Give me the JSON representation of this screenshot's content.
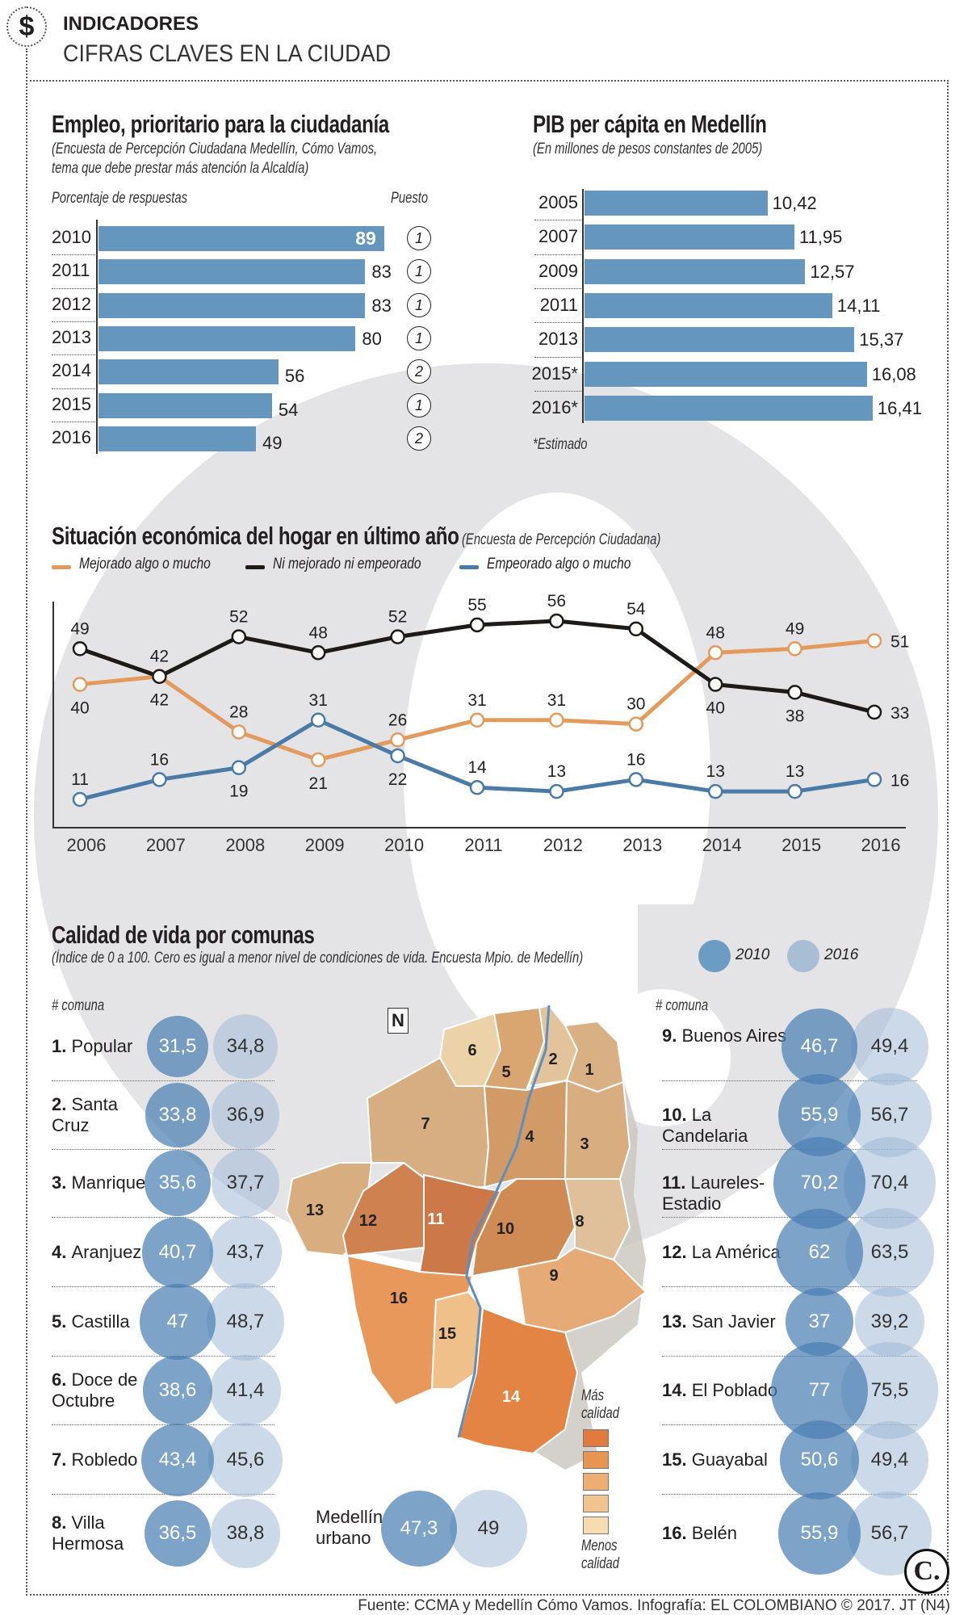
{
  "header": {
    "icon": "dollar-icon",
    "kicker": "INDICADORES",
    "title": "CIFRAS CLAVES EN LA CIUDAD"
  },
  "chart_data": [
    {
      "type": "bar",
      "id": "empleo",
      "title": "Empleo, prioritario para la ciudadanía",
      "subtitle_line1": "(Encuesta de Percepción Ciudadana Medellín, Cómo Vamos,",
      "subtitle_line2": "tema que debe prestar más atención la Alcaldía)",
      "xlabel": "Porcentaje de respuestas",
      "rank_label": "Puesto",
      "categories": [
        "2010",
        "2011",
        "2012",
        "2013",
        "2014",
        "2015",
        "2016"
      ],
      "values": [
        89,
        83,
        83,
        80,
        56,
        54,
        49
      ],
      "rank": [
        1,
        1,
        1,
        1,
        2,
        1,
        2
      ],
      "orientation": "horizontal",
      "color": "#6496be"
    },
    {
      "type": "bar",
      "id": "pib",
      "title": "PIB per cápita en Medellín",
      "subtitle": "(En millones de pesos constantes de 2005)",
      "categories": [
        "2005",
        "2007",
        "2009",
        "2011",
        "2013",
        "2015*",
        "2016*"
      ],
      "values": [
        10.42,
        11.95,
        12.57,
        14.11,
        15.37,
        16.08,
        16.41
      ],
      "value_labels": [
        "10,42",
        "11,95",
        "12,57",
        "14,11",
        "15,37",
        "16,08",
        "16,41"
      ],
      "note": "*Estimado",
      "orientation": "horizontal",
      "color": "#6496be"
    },
    {
      "type": "line",
      "id": "hogar",
      "title": "Situación económica del hogar en último año",
      "subtitle": "(Encuesta de Percepción Ciudadana)",
      "x": [
        "2006",
        "2007",
        "2008",
        "2009",
        "2010",
        "2011",
        "2012",
        "2013",
        "2014",
        "2015",
        "2016"
      ],
      "series": [
        {
          "name": "Mejorado algo o mucho",
          "color": "#e39a5d",
          "values": [
            40,
            42,
            28,
            21,
            26,
            31,
            31,
            30,
            48,
            49,
            51
          ]
        },
        {
          "name": "Ni mejorado ni empeorado",
          "color": "#1d1a17",
          "values": [
            49,
            42,
            52,
            48,
            52,
            55,
            56,
            54,
            40,
            38,
            33
          ]
        },
        {
          "name": "Empeorado algo o mucho",
          "color": "#4a7ba6",
          "values": [
            11,
            16,
            19,
            31,
            22,
            14,
            13,
            16,
            13,
            13,
            16
          ]
        }
      ],
      "legend": "top-left",
      "grid": false
    },
    {
      "type": "bubble",
      "id": "calidad",
      "title": "Calidad de vida por comunas",
      "subtitle": "(Índice de 0 a 100. Cero es igual a menor nivel de condiciones de vida. Encuesta Mpio. de Medellín)",
      "legend": [
        {
          "label": "2010",
          "color": "#6c9bc4"
        },
        {
          "label": "2016",
          "color": "#a9bdd4"
        }
      ],
      "column_header": "# comuna",
      "comunas": [
        {
          "num": "1.",
          "name": "Popular",
          "v2010": "31,5",
          "v2016": "34,8"
        },
        {
          "num": "2.",
          "name": "Santa Cruz",
          "v2010": "33,8",
          "v2016": "36,9"
        },
        {
          "num": "3.",
          "name": "Manrique",
          "v2010": "35,6",
          "v2016": "37,7"
        },
        {
          "num": "4.",
          "name": "Aranjuez",
          "v2010": "40,7",
          "v2016": "43,7"
        },
        {
          "num": "5.",
          "name": "Castilla",
          "v2010": "47",
          "v2016": "48,7"
        },
        {
          "num": "6.",
          "name": "Doce de Octubre",
          "v2010": "38,6",
          "v2016": "41,4"
        },
        {
          "num": "7.",
          "name": "Robledo",
          "v2010": "43,4",
          "v2016": "45,6"
        },
        {
          "num": "8.",
          "name": "Villa Hermosa",
          "v2010": "36,5",
          "v2016": "38,8"
        },
        {
          "num": "9.",
          "name": "Buenos Aires",
          "v2010": "46,7",
          "v2016": "49,4"
        },
        {
          "num": "10.",
          "name": "La Candelaria",
          "v2010": "55,9",
          "v2016": "56,7"
        },
        {
          "num": "11.",
          "name": "Laureles-Estadio",
          "v2010": "70,2",
          "v2016": "70,4"
        },
        {
          "num": "12.",
          "name": "La América",
          "v2010": "62",
          "v2016": "63,5"
        },
        {
          "num": "13.",
          "name": "San Javier",
          "v2010": "37",
          "v2016": "39,2"
        },
        {
          "num": "14.",
          "name": "El Poblado",
          "v2010": "77",
          "v2016": "75,5"
        },
        {
          "num": "15.",
          "name": "Guayabal",
          "v2010": "50,6",
          "v2016": "49,4"
        },
        {
          "num": "16.",
          "name": "Belén",
          "v2010": "55,9",
          "v2016": "56,7"
        }
      ],
      "urbano": {
        "name_line1": "Medellín",
        "name_line2": "urbano",
        "v2010": "47,3",
        "v2016": "49"
      }
    }
  ],
  "map": {
    "north_label": "N",
    "scale_top_line1": "Más",
    "scale_top_line2": "calidad",
    "scale_bottom_line1": "Menos",
    "scale_bottom_line2": "calidad",
    "scale_colors": [
      "#e2793d",
      "#e89552",
      "#edae72",
      "#f0c48f",
      "#f6dcae"
    ]
  },
  "footer": {
    "source": "Fuente: CCMA y Medellín Cómo Vamos. Infografía: EL COLOMBIANO © 2017. JT (N4)",
    "logo": "C."
  }
}
